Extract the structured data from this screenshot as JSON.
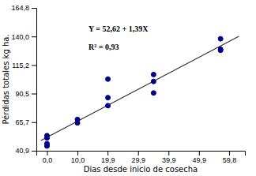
{
  "chart_data": {
    "type": "scatter",
    "xlabel": "Dias  desde inicio de cosecha",
    "ylabel": "Pérdidas totales kg ha.",
    "annotations": [
      "Y = 52,62 + 1,39X",
      "R² = 0,93"
    ],
    "series": [
      {
        "type": "scatter",
        "color": "#00008B",
        "x": [
          0,
          0,
          0,
          0,
          10,
          10,
          20,
          20,
          20,
          35,
          35,
          35,
          57,
          57,
          57
        ],
        "values": [
          54,
          52,
          47,
          45,
          68,
          65,
          103,
          87,
          80,
          107,
          101,
          91,
          138,
          129,
          128
        ]
      },
      {
        "type": "line",
        "color": "#333333",
        "x": [
          -2,
          63
        ],
        "values": [
          49.84,
          140.19
        ]
      }
    ],
    "xlim": [
      -3.5,
      65
    ],
    "ylim": [
      40.9,
      164.8
    ],
    "xticks": [
      {
        "value": 0.0,
        "label": "0,0"
      },
      {
        "value": 10.0,
        "label": "10,0"
      },
      {
        "value": 19.9,
        "label": "19,9"
      },
      {
        "value": 29.9,
        "label": "29,9"
      },
      {
        "value": 39.9,
        "label": "39,9"
      },
      {
        "value": 49.9,
        "label": "49,9"
      },
      {
        "value": 59.8,
        "label": "59,8"
      }
    ],
    "yticks": [
      {
        "value": 40.9,
        "label": "40,9"
      },
      {
        "value": 65.7,
        "label": "65,7"
      },
      {
        "value": 90.5,
        "label": "90,5"
      },
      {
        "value": 115.2,
        "label": "115,2"
      },
      {
        "value": 140.0,
        "label": "140,0"
      },
      {
        "value": 164.8,
        "label": "164,8"
      }
    ]
  }
}
